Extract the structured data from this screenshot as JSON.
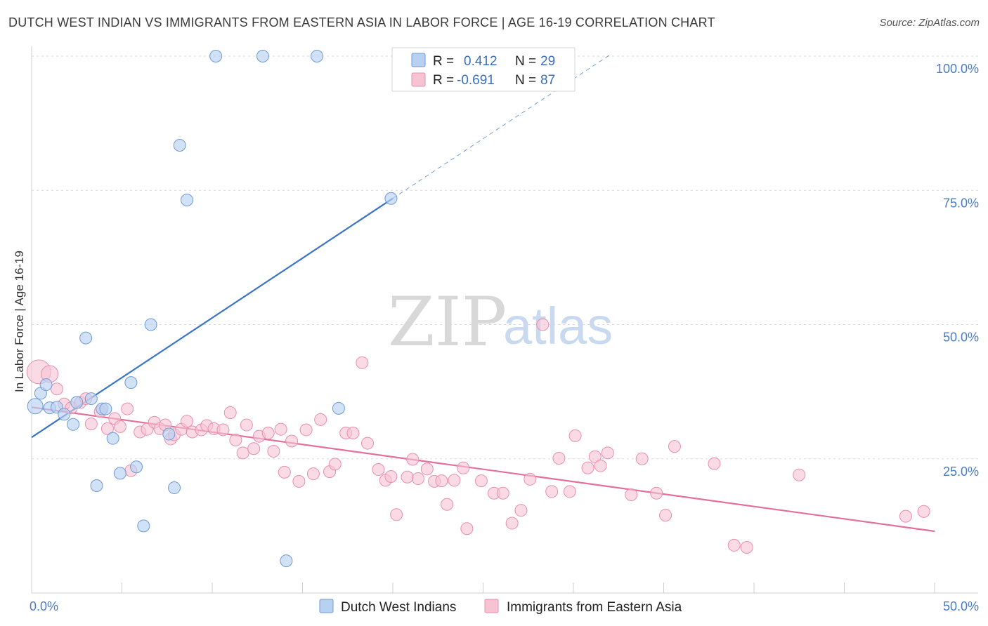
{
  "header": {
    "title": "DUTCH WEST INDIAN VS IMMIGRANTS FROM EASTERN ASIA IN LABOR FORCE | AGE 16-19 CORRELATION CHART",
    "source": "Source: ZipAtlas.com"
  },
  "watermark": {
    "zip": "ZIP",
    "atlas": "atlas"
  },
  "colors": {
    "blue_fill": "#b9d1f1",
    "blue_stroke": "#6f9bd8",
    "blue_line": "#3a74c8",
    "pink_fill": "#f6c3d3",
    "pink_stroke": "#e88fae",
    "pink_line": "#e2709a",
    "grid": "#d9d9d9",
    "tick_text": "#4a7cc4"
  },
  "legend": {
    "rows": [
      {
        "r_label": "R =",
        "r_value": "0.412",
        "n_label": "N =",
        "n_value": "29"
      },
      {
        "r_label": "R =",
        "r_value": "-0.691",
        "n_label": "N =",
        "n_value": "87"
      }
    ]
  },
  "chart_data": {
    "type": "scatter",
    "title": "DUTCH WEST INDIAN VS IMMIGRANTS FROM EASTERN ASIA IN LABOR FORCE | AGE 16-19 CORRELATION CHART",
    "xlabel": "",
    "ylabel": "In Labor Force | Age 16-19",
    "xlim": [
      0,
      50
    ],
    "ylim": [
      0,
      100
    ],
    "x_tick_labels": [
      "0.0%",
      "50.0%"
    ],
    "y_ticks": [
      25,
      50,
      75,
      100
    ],
    "y_tick_labels": [
      "25.0%",
      "50.0%",
      "75.0%",
      "100.0%"
    ],
    "grid": true,
    "legend_position": "top-center",
    "series": [
      {
        "name": "Dutch West Indians",
        "r": 0.412,
        "n": 29,
        "trend": {
          "x0": 0,
          "y0": 29.0,
          "x1": 20,
          "y1": 73.5,
          "dashed_to_x": 32
        },
        "points": [
          [
            0.2,
            34.8
          ],
          [
            0.5,
            37.2
          ],
          [
            0.8,
            38.8
          ],
          [
            1.0,
            34.5
          ],
          [
            1.4,
            34.6
          ],
          [
            1.8,
            33.3
          ],
          [
            2.3,
            31.4
          ],
          [
            2.5,
            35.5
          ],
          [
            3.0,
            47.5
          ],
          [
            3.3,
            36.2
          ],
          [
            3.6,
            20.0
          ],
          [
            3.9,
            34.3
          ],
          [
            4.1,
            34.3
          ],
          [
            4.5,
            28.8
          ],
          [
            4.9,
            22.3
          ],
          [
            5.5,
            39.2
          ],
          [
            5.8,
            23.5
          ],
          [
            6.2,
            12.5
          ],
          [
            6.6,
            50.0
          ],
          [
            7.6,
            29.6
          ],
          [
            7.9,
            19.6
          ],
          [
            8.2,
            83.4
          ],
          [
            8.6,
            73.2
          ],
          [
            10.2,
            100.0
          ],
          [
            12.8,
            100.0
          ],
          [
            14.1,
            6.0
          ],
          [
            15.8,
            100.0
          ],
          [
            17.0,
            34.4
          ],
          [
            19.9,
            73.5
          ]
        ]
      },
      {
        "name": "Immigrants from Eastern Asia",
        "r": -0.691,
        "n": 87,
        "trend": {
          "x0": 0,
          "y0": 34.6,
          "x1": 50,
          "y1": 11.5
        },
        "points": [
          [
            0.4,
            41.2
          ],
          [
            1.0,
            40.8
          ],
          [
            1.4,
            38.0
          ],
          [
            1.8,
            35.2
          ],
          [
            2.2,
            34.5
          ],
          [
            2.7,
            35.5
          ],
          [
            3.0,
            36.2
          ],
          [
            3.3,
            31.5
          ],
          [
            3.8,
            33.8
          ],
          [
            4.2,
            30.6
          ],
          [
            4.6,
            32.5
          ],
          [
            4.9,
            31.0
          ],
          [
            5.3,
            34.3
          ],
          [
            5.5,
            22.8
          ],
          [
            6.0,
            30.0
          ],
          [
            6.4,
            30.5
          ],
          [
            6.8,
            31.8
          ],
          [
            7.1,
            30.6
          ],
          [
            7.4,
            31.3
          ],
          [
            7.7,
            28.7
          ],
          [
            7.9,
            29.5
          ],
          [
            8.3,
            30.5
          ],
          [
            8.6,
            32.0
          ],
          [
            8.9,
            30.0
          ],
          [
            9.4,
            30.4
          ],
          [
            9.7,
            31.2
          ],
          [
            10.1,
            30.6
          ],
          [
            10.6,
            30.4
          ],
          [
            11.0,
            33.6
          ],
          [
            11.3,
            28.5
          ],
          [
            11.7,
            26.1
          ],
          [
            11.9,
            31.3
          ],
          [
            12.3,
            26.9
          ],
          [
            12.6,
            29.2
          ],
          [
            13.1,
            29.8
          ],
          [
            13.4,
            26.4
          ],
          [
            13.8,
            30.5
          ],
          [
            14.0,
            22.5
          ],
          [
            14.4,
            28.3
          ],
          [
            14.8,
            20.8
          ],
          [
            15.2,
            30.4
          ],
          [
            15.6,
            22.2
          ],
          [
            16.0,
            32.3
          ],
          [
            16.5,
            22.6
          ],
          [
            16.8,
            24.0
          ],
          [
            17.4,
            29.8
          ],
          [
            17.8,
            29.8
          ],
          [
            18.3,
            42.9
          ],
          [
            18.6,
            27.9
          ],
          [
            19.2,
            23.0
          ],
          [
            19.6,
            21.0
          ],
          [
            19.9,
            21.7
          ],
          [
            20.2,
            14.6
          ],
          [
            20.8,
            21.6
          ],
          [
            21.1,
            24.9
          ],
          [
            21.4,
            21.3
          ],
          [
            21.9,
            23.1
          ],
          [
            22.3,
            20.8
          ],
          [
            22.7,
            20.9
          ],
          [
            23.0,
            16.5
          ],
          [
            23.4,
            21.0
          ],
          [
            23.9,
            23.3
          ],
          [
            24.1,
            12.0
          ],
          [
            24.9,
            20.9
          ],
          [
            25.6,
            18.6
          ],
          [
            26.1,
            18.6
          ],
          [
            26.6,
            13.0
          ],
          [
            27.1,
            15.4
          ],
          [
            27.6,
            21.2
          ],
          [
            28.3,
            50.0
          ],
          [
            28.8,
            18.9
          ],
          [
            29.2,
            25.1
          ],
          [
            29.8,
            18.9
          ],
          [
            30.1,
            29.3
          ],
          [
            30.8,
            23.3
          ],
          [
            31.2,
            25.4
          ],
          [
            31.5,
            23.7
          ],
          [
            31.9,
            26.1
          ],
          [
            33.2,
            18.3
          ],
          [
            33.8,
            25.0
          ],
          [
            34.6,
            18.6
          ],
          [
            35.1,
            14.5
          ],
          [
            35.6,
            27.3
          ],
          [
            37.8,
            24.1
          ],
          [
            38.9,
            8.9
          ],
          [
            39.6,
            8.5
          ],
          [
            42.5,
            22.0
          ],
          [
            48.4,
            14.3
          ],
          [
            49.4,
            15.2
          ]
        ]
      }
    ]
  },
  "bottom_legend": {
    "items": [
      {
        "label": "Dutch West Indians"
      },
      {
        "label": "Immigrants from Eastern Asia"
      }
    ]
  }
}
